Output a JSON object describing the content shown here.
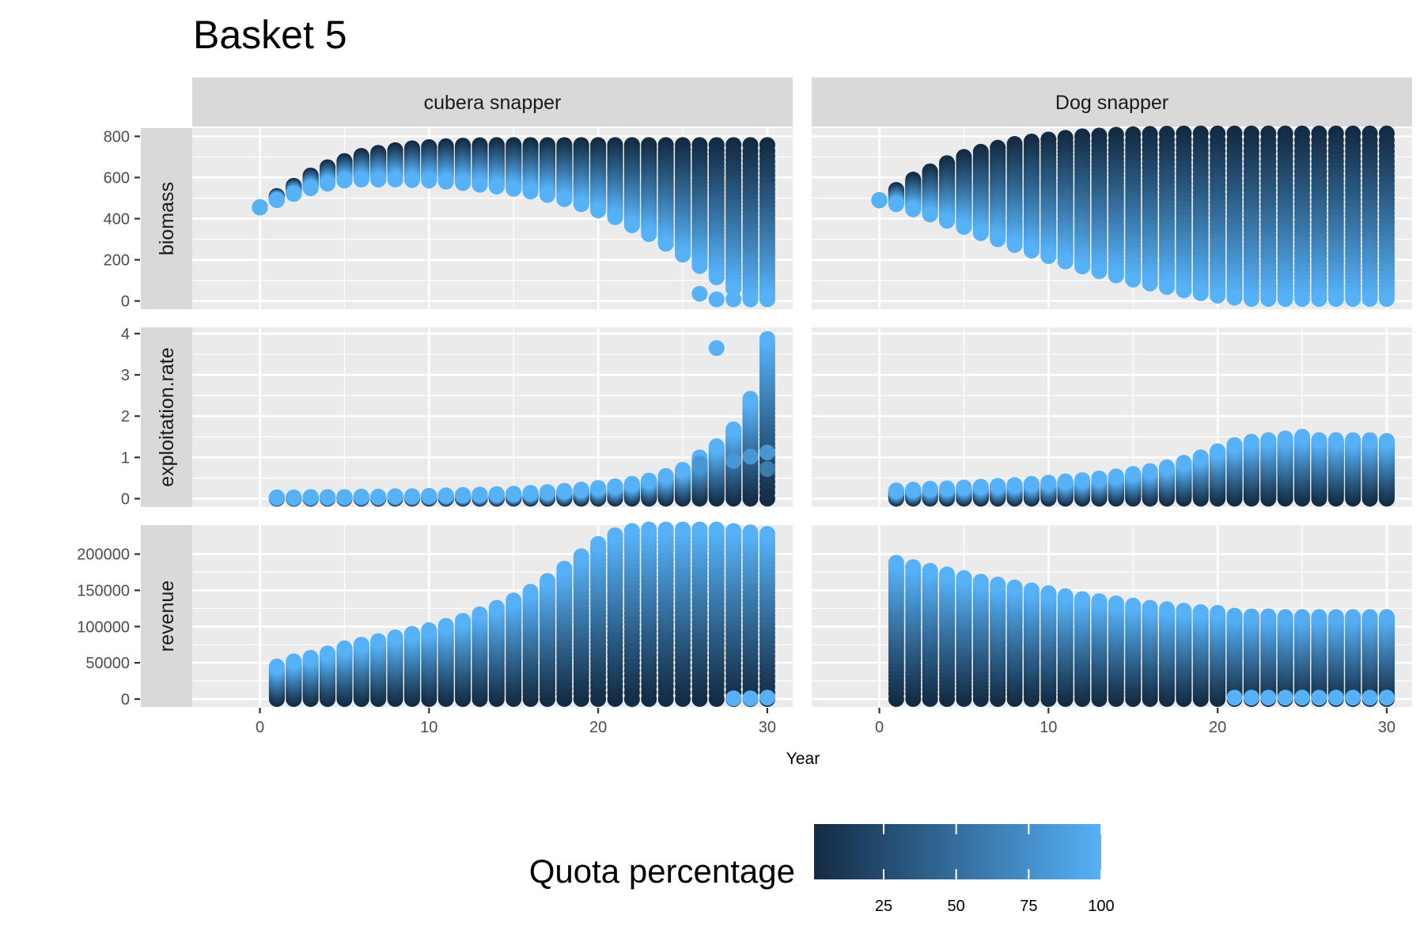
{
  "title": "Basket 5",
  "chart_data": {
    "type": "scatter",
    "title": "Basket 5",
    "xlabel": "Year",
    "ylabel": "",
    "xlim": [
      -4,
      31.5
    ],
    "x_ticks": [
      0,
      10,
      20,
      30
    ],
    "facet_columns": [
      "cubera snapper",
      "Dog snapper"
    ],
    "facet_rows": [
      "biomass",
      "exploitation.rate",
      "revenue"
    ],
    "row_ranges": {
      "biomass": {
        "ylim": [
          -40,
          840
        ],
        "ticks": [
          0,
          200,
          400,
          600,
          800
        ]
      },
      "exploitation.rate": {
        "ylim": [
          -0.2,
          4.15
        ],
        "ticks": [
          0,
          1,
          2,
          3,
          4
        ]
      },
      "revenue": {
        "ylim": [
          -11000,
          240000
        ],
        "ticks": [
          0,
          50000,
          100000,
          150000,
          200000
        ]
      }
    },
    "color_scale": {
      "name": "Quota percentage",
      "low_color": "#132B43",
      "high_color": "#56B1F7",
      "limits": [
        1,
        100
      ],
      "ticks": [
        25,
        50,
        75,
        100
      ]
    },
    "series": [
      {
        "species": "cubera snapper",
        "variable": "biomass",
        "years": [
          0,
          1,
          2,
          3,
          4,
          5,
          6,
          7,
          8,
          9,
          10,
          11,
          12,
          13,
          14,
          15,
          16,
          17,
          18,
          19,
          20,
          21,
          22,
          23,
          24,
          25,
          26,
          27,
          28,
          29,
          30
        ],
        "max_quota_value": [
          455,
          490,
          520,
          548,
          570,
          585,
          590,
          590,
          590,
          588,
          585,
          580,
          573,
          565,
          556,
          545,
          532,
          515,
          495,
          470,
          440,
          407,
          368,
          325,
          278,
          225,
          170,
          115,
          60,
          15,
          10
        ],
        "min_quota_value": [
          455,
          510,
          560,
          610,
          650,
          680,
          705,
          720,
          733,
          742,
          748,
          752,
          755,
          757,
          758,
          758,
          758,
          758,
          758,
          758,
          758,
          758,
          758,
          758,
          758,
          758,
          758,
          758,
          758,
          758,
          758
        ],
        "isolated_points": [
          {
            "x": 26,
            "y": 35,
            "quota": 100
          },
          {
            "x": 27,
            "y": 8,
            "quota": 100
          },
          {
            "x": 28,
            "y": 8,
            "quota": 100
          },
          {
            "x": 29,
            "y": 8,
            "quota": 100
          },
          {
            "x": 30,
            "y": 8,
            "quota": 100
          }
        ]
      },
      {
        "species": "Dog snapper",
        "variable": "biomass",
        "years": [
          0,
          1,
          2,
          3,
          4,
          5,
          6,
          7,
          8,
          9,
          10,
          11,
          12,
          13,
          14,
          15,
          16,
          17,
          18,
          19,
          20,
          21,
          22,
          23,
          24,
          25,
          26,
          27,
          28,
          29,
          30
        ],
        "max_quota_value": [
          490,
          470,
          445,
          420,
          390,
          360,
          330,
          300,
          272,
          245,
          218,
          192,
          168,
          145,
          124,
          104,
          85,
          68,
          52,
          38,
          26,
          16,
          10,
          10,
          10,
          10,
          10,
          10,
          10,
          10,
          10
        ],
        "min_quota_value": [
          490,
          540,
          590,
          630,
          670,
          700,
          725,
          745,
          763,
          775,
          785,
          793,
          800,
          804,
          808,
          810,
          812,
          813,
          814,
          814,
          814,
          814,
          814,
          814,
          814,
          814,
          814,
          814,
          814,
          814,
          814
        ]
      },
      {
        "species": "cubera snapper",
        "variable": "exploitation.rate",
        "years": [
          1,
          2,
          3,
          4,
          5,
          6,
          7,
          8,
          9,
          10,
          11,
          12,
          13,
          14,
          15,
          16,
          17,
          18,
          19,
          20,
          21,
          22,
          23,
          24,
          25,
          26,
          27,
          28,
          29,
          30
        ],
        "min_quota_value": [
          0,
          0,
          0,
          0,
          0,
          0,
          0,
          0,
          0,
          0,
          0,
          0,
          0,
          0,
          0,
          0,
          0,
          0,
          0,
          0,
          0,
          0,
          0,
          0,
          0,
          0,
          0,
          0,
          0,
          0
        ],
        "max_quota_value": [
          0.03,
          0.03,
          0.04,
          0.04,
          0.04,
          0.05,
          0.05,
          0.06,
          0.06,
          0.07,
          0.08,
          0.09,
          0.1,
          0.11,
          0.12,
          0.14,
          0.16,
          0.19,
          0.22,
          0.26,
          0.3,
          0.36,
          0.44,
          0.55,
          0.7,
          1.0,
          1.27,
          1.68,
          2.42,
          3.87
        ],
        "extra_points": [
          {
            "x": 26,
            "y": 0.85,
            "quota": 80
          },
          {
            "x": 27,
            "y": 3.65,
            "quota": 100
          },
          {
            "x": 28,
            "y": 0.92,
            "quota": 80
          },
          {
            "x": 29,
            "y": 1.02,
            "quota": 80
          },
          {
            "x": 30,
            "y": 1.12,
            "quota": 80
          },
          {
            "x": 30,
            "y": 0.72,
            "quota": 60
          }
        ]
      },
      {
        "species": "Dog snapper",
        "variable": "exploitation.rate",
        "years": [
          1,
          2,
          3,
          4,
          5,
          6,
          7,
          8,
          9,
          10,
          11,
          12,
          13,
          14,
          15,
          16,
          17,
          18,
          19,
          20,
          21,
          22,
          23,
          24,
          25,
          26,
          27,
          28,
          29,
          30
        ],
        "min_quota_value": [
          0,
          0,
          0,
          0,
          0,
          0,
          0,
          0,
          0,
          0,
          0,
          0,
          0,
          0,
          0,
          0,
          0,
          0,
          0,
          0,
          0,
          0,
          0,
          0,
          0,
          0,
          0,
          0,
          0,
          0
        ],
        "max_quota_value": [
          0.2,
          0.22,
          0.24,
          0.25,
          0.27,
          0.29,
          0.31,
          0.33,
          0.36,
          0.39,
          0.42,
          0.45,
          0.49,
          0.54,
          0.6,
          0.67,
          0.76,
          0.87,
          1.0,
          1.15,
          1.3,
          1.38,
          1.42,
          1.46,
          1.5,
          1.42,
          1.42,
          1.42,
          1.42,
          1.4
        ]
      },
      {
        "species": "cubera snapper",
        "variable": "revenue",
        "years": [
          1,
          2,
          3,
          4,
          5,
          6,
          7,
          8,
          9,
          10,
          11,
          12,
          13,
          14,
          15,
          16,
          17,
          18,
          19,
          20,
          21,
          22,
          23,
          24,
          25,
          26,
          27,
          28,
          29,
          30
        ],
        "min_quota_value": [
          0,
          0,
          0,
          0,
          0,
          0,
          0,
          0,
          0,
          0,
          0,
          0,
          0,
          0,
          0,
          0,
          0,
          0,
          0,
          0,
          0,
          0,
          0,
          0,
          0,
          0,
          0,
          0,
          0,
          0
        ],
        "max_quota_value": [
          45000,
          52000,
          57000,
          63000,
          70000,
          75000,
          80000,
          85000,
          90000,
          95000,
          101000,
          108000,
          117000,
          126000,
          136000,
          148000,
          163000,
          180000,
          197000,
          214000,
          226000,
          232000,
          234000,
          234000,
          234000,
          234000,
          234000,
          232000,
          230000,
          228000
        ],
        "isolated_points": [
          {
            "x": 28,
            "y": 1000,
            "quota": 100
          },
          {
            "x": 29,
            "y": 1000,
            "quota": 100
          },
          {
            "x": 30,
            "y": 2000,
            "quota": 100
          }
        ]
      },
      {
        "species": "Dog snapper",
        "variable": "revenue",
        "years": [
          1,
          2,
          3,
          4,
          5,
          6,
          7,
          8,
          9,
          10,
          11,
          12,
          13,
          14,
          15,
          16,
          17,
          18,
          19,
          20,
          21,
          22,
          23,
          24,
          25,
          26,
          27,
          28,
          29,
          30
        ],
        "min_quota_value": [
          0,
          0,
          0,
          0,
          0,
          0,
          0,
          0,
          0,
          0,
          0,
          0,
          0,
          0,
          0,
          0,
          0,
          0,
          0,
          0,
          0,
          0,
          0,
          0,
          0,
          0,
          0,
          0,
          0,
          0
        ],
        "max_quota_value": [
          188000,
          182000,
          177000,
          172000,
          167000,
          162000,
          158000,
          154000,
          150000,
          146000,
          142000,
          138000,
          135000,
          132000,
          129000,
          126000,
          124000,
          122000,
          120000,
          119000,
          118000,
          117000,
          117000,
          116000,
          116000,
          116000,
          116000,
          116000,
          116000,
          116000
        ],
        "full_quota_value": [
          188000,
          182000,
          177000,
          172000,
          167000,
          162000,
          158000,
          154000,
          150000,
          146000,
          142000,
          138000,
          135000,
          132000,
          129000,
          126000,
          124000,
          122000,
          120000,
          119000,
          2000,
          2000,
          2000,
          2000,
          2000,
          2000,
          2000,
          2000,
          2000,
          2000
        ]
      }
    ]
  }
}
